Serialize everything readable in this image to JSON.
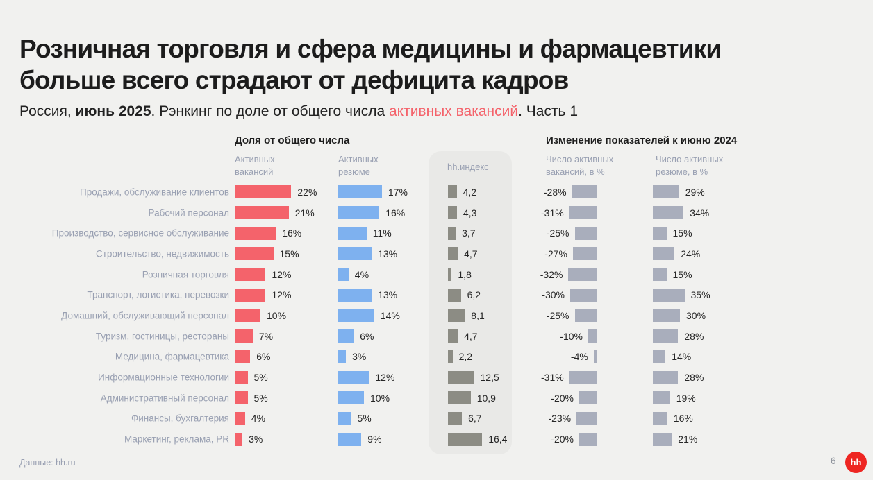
{
  "colors": {
    "vacancies_bar": "#f4636b",
    "resumes_bar": "#7eb1ef",
    "hh_index_bar": "#8c8c84",
    "change_bar": "#a9aebc",
    "background": "#f1f1ef",
    "panel": "#e9e9e7",
    "title_text": "#1c1c1c",
    "label_text": "#99a0b2",
    "value_text": "#262626",
    "logo_red": "#ee2622"
  },
  "title": {
    "line1": "Розничная торговля и сфера медицины и фармацевтики",
    "line2": "больше всего страдают от дефицита кадров"
  },
  "subtitle": {
    "prefix": "Россия, ",
    "bold": "июнь 2025",
    "middle": ". Рэнкинг по доле от общего числа ",
    "accent": "активных вакансий",
    "suffix": ". Часть 1"
  },
  "sections": {
    "share": {
      "title": "Доля от общего числа",
      "col_vacancies": "Активных вакансий",
      "col_resumes": "Активных резюме"
    },
    "hh_index": {
      "title": "hh.индекс"
    },
    "change": {
      "title": "Изменение показателей к июню 2024",
      "col_vacancies": "Число активных вакансий, в %",
      "col_resumes": "Число активных резюме, в %"
    }
  },
  "chart_data": {
    "type": "bar",
    "orientation": "horizontal",
    "value_labels": true,
    "grid": false,
    "categories": [
      "Продажи, обслуживание клиентов",
      "Рабочий персонал",
      "Производство, сервисное обслуживание",
      "Строительство, недвижимость",
      "Розничная торговля",
      "Транспорт, логистика, перевозки",
      "Домашний, обслуживающий персонал",
      "Туризм, гостиницы, рестораны",
      "Медицина, фармацевтика",
      "Информационные технологии",
      "Административный персонал",
      "Финансы, бухгалтерия",
      "Маркетинг, реклама, PR"
    ],
    "series": [
      {
        "name": "Активных вакансий, доля от общего числа",
        "unit": "%",
        "values": [
          22,
          21,
          16,
          15,
          12,
          12,
          10,
          7,
          6,
          5,
          5,
          4,
          3
        ]
      },
      {
        "name": "Активных резюме, доля от общего числа",
        "unit": "%",
        "values": [
          17,
          16,
          11,
          13,
          4,
          13,
          14,
          6,
          3,
          12,
          10,
          5,
          9
        ]
      },
      {
        "name": "hh.индекс",
        "unit": "",
        "values": [
          4.2,
          4.3,
          3.7,
          4.7,
          1.8,
          6.2,
          8.1,
          4.7,
          2.2,
          12.5,
          10.9,
          6.7,
          16.4
        ]
      },
      {
        "name": "Число активных вакансий, изменение к июню 2024",
        "unit": "%",
        "values": [
          -28,
          -31,
          -25,
          -27,
          -32,
          -30,
          -25,
          -10,
          -4,
          -31,
          -20,
          -23,
          -20
        ]
      },
      {
        "name": "Число активных резюме, изменение к июню 2024",
        "unit": "%",
        "values": [
          29,
          34,
          15,
          24,
          15,
          35,
          30,
          28,
          14,
          28,
          19,
          16,
          21
        ]
      }
    ]
  },
  "footer": {
    "source": "Данные: hh.ru",
    "page": "6",
    "logo": "hh"
  }
}
